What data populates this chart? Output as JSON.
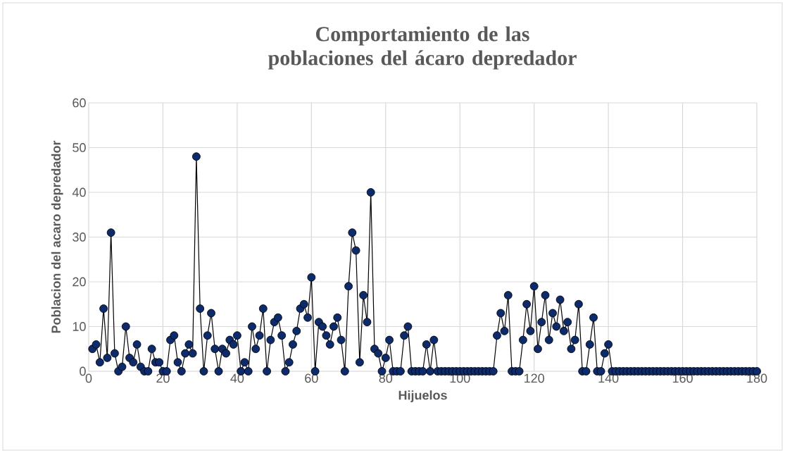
{
  "chart_data": {
    "type": "line",
    "title": "Comportamiento de las poblaciones del ácaro depredador",
    "xlabel": "Hijuelos",
    "ylabel": "Poblacion del acaro depredador",
    "x": [
      1,
      2,
      3,
      4,
      5,
      6,
      7,
      8,
      9,
      10,
      11,
      12,
      13,
      14,
      15,
      16,
      17,
      18,
      19,
      20,
      21,
      22,
      23,
      24,
      25,
      26,
      27,
      28,
      29,
      30,
      31,
      32,
      33,
      34,
      35,
      36,
      37,
      38,
      39,
      40,
      41,
      42,
      43,
      44,
      45,
      46,
      47,
      48,
      49,
      50,
      51,
      52,
      53,
      54,
      55,
      56,
      57,
      58,
      59,
      60,
      61,
      62,
      63,
      64,
      65,
      66,
      67,
      68,
      69,
      70,
      71,
      72,
      73,
      74,
      75,
      76,
      77,
      78,
      79,
      80,
      81,
      82,
      83,
      84,
      85,
      86,
      87,
      88,
      89,
      90,
      91,
      92,
      93,
      94,
      95,
      96,
      97,
      98,
      99,
      100,
      101,
      102,
      103,
      104,
      105,
      106,
      107,
      108,
      109,
      110,
      111,
      112,
      113,
      114,
      115,
      116,
      117,
      118,
      119,
      120,
      121,
      122,
      123,
      124,
      125,
      126,
      127,
      128,
      129,
      130,
      131,
      132,
      133,
      134,
      135,
      136,
      137,
      138,
      139,
      140,
      141,
      142,
      143,
      144,
      145,
      146,
      147,
      148,
      149,
      150,
      151,
      152,
      153,
      154,
      155,
      156,
      157,
      158,
      159,
      160,
      161,
      162,
      163,
      164,
      165,
      166,
      167,
      168,
      169,
      170,
      171,
      172,
      173,
      174,
      175,
      176,
      177,
      178,
      179,
      180
    ],
    "series": [
      {
        "color": "#0d2a6b",
        "values": [
          5,
          6,
          2,
          14,
          3,
          31,
          4,
          0,
          1,
          10,
          3,
          2,
          6,
          1,
          0,
          0,
          5,
          2,
          2,
          0,
          0,
          7,
          8,
          2,
          0,
          4,
          6,
          4,
          48,
          14,
          0,
          8,
          13,
          5,
          0,
          5,
          4,
          7,
          6,
          8,
          0,
          2,
          0,
          10,
          5,
          8,
          14,
          0,
          7,
          11,
          12,
          8,
          0,
          2,
          6,
          9,
          14,
          15,
          12,
          21,
          0,
          11,
          10,
          8,
          6,
          10,
          12,
          7,
          0,
          19,
          31,
          27,
          2,
          17,
          11,
          40,
          5,
          4,
          0,
          3,
          7,
          0,
          0,
          0,
          8,
          10,
          0,
          0,
          0,
          0,
          6,
          0,
          7,
          0,
          0,
          0,
          0,
          0,
          0,
          0,
          0,
          0,
          0,
          0,
          0,
          0,
          0,
          0,
          0,
          8,
          13,
          9,
          17,
          0,
          0,
          0,
          7,
          15,
          9,
          19,
          5,
          11,
          17,
          7,
          13,
          10,
          16,
          9,
          11,
          5,
          7,
          15,
          0,
          0,
          6,
          12,
          0,
          0,
          4,
          6,
          0,
          0,
          0,
          0,
          0,
          0,
          0,
          0,
          0,
          0,
          0,
          0,
          0,
          0,
          0,
          0,
          0,
          0,
          0,
          0,
          0,
          0,
          0,
          0,
          0,
          0,
          0,
          0,
          0,
          0,
          0,
          0,
          0,
          0,
          0,
          0,
          0,
          0,
          0,
          0
        ]
      }
    ],
    "xlim": [
      0,
      180
    ],
    "ylim": [
      0,
      60
    ],
    "xticks": [
      0,
      20,
      40,
      60,
      80,
      100,
      120,
      140,
      160,
      180
    ],
    "yticks": [
      0,
      10,
      20,
      30,
      40,
      50,
      60
    ],
    "grid": true,
    "marker": "circle",
    "line_style": "solid"
  }
}
